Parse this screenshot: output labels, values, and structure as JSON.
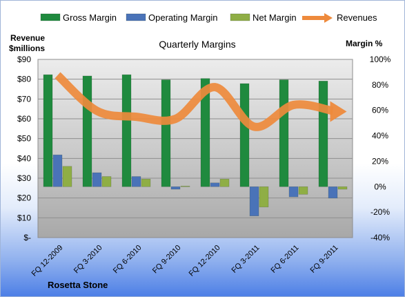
{
  "chart_data": {
    "type": "bar",
    "title": "Quarterly Margins",
    "footer_label": "Rosetta Stone",
    "left_axis": {
      "label_line1": "Revenue",
      "label_line2": "$millions",
      "min": 0,
      "max": 90,
      "step": 10,
      "tick_labels": [
        "$-",
        "$10",
        "$20",
        "$30",
        "$40",
        "$50",
        "$60",
        "$70",
        "$80",
        "$90"
      ]
    },
    "right_axis": {
      "label": "Margin %",
      "min": -40,
      "max": 100,
      "step": 20,
      "tick_labels": [
        "-40%",
        "-20%",
        "0%",
        "20%",
        "40%",
        "60%",
        "80%",
        "100%"
      ]
    },
    "categories": [
      "FQ 12-2009",
      "FQ 3-2010",
      "FQ 6-2010",
      "FQ 9-2010",
      "FQ 12-2010",
      "FQ 3-2011",
      "FQ 6-2011",
      "FQ 9-2011"
    ],
    "series": [
      {
        "name": "Gross Margin",
        "kind": "bar",
        "axis": "right",
        "color": "#1f8a3e",
        "values": [
          88,
          87,
          88,
          84,
          85,
          81,
          84,
          83
        ]
      },
      {
        "name": "Operating Margin",
        "kind": "bar",
        "axis": "right",
        "color": "#4a73b8",
        "values": [
          25,
          11,
          8,
          -2,
          3,
          -23,
          -8,
          -9
        ]
      },
      {
        "name": "Net Margin",
        "kind": "bar",
        "axis": "right",
        "color": "#8fae45",
        "values": [
          16,
          8,
          6,
          0.5,
          6,
          -16,
          -6,
          -2
        ]
      },
      {
        "name": "Revenues",
        "kind": "line",
        "axis": "left",
        "color": "#ee8a3c",
        "values": [
          82,
          64,
          61,
          60,
          76,
          56,
          67,
          64
        ]
      }
    ],
    "grid": "horizontal",
    "legend_position": "top"
  }
}
